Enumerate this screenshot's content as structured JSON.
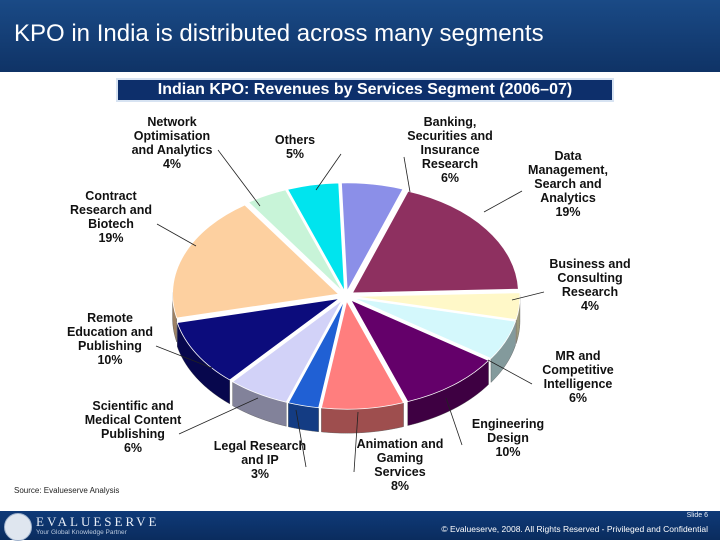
{
  "slide": {
    "title": "KPO in India is distributed across many segments",
    "source": "Source: Evalueserve Analysis",
    "slide_number": "Slide 6",
    "copyright": "© Evalueserve, 2008. All Rights Reserved - Privileged and Confidential",
    "brand": "EVALUESERVE",
    "tagline": "Your Global Knowledge Partner"
  },
  "chart_data": {
    "type": "pie",
    "title": "Indian KPO: Revenues by Services Segment (2006–07)",
    "slices": [
      {
        "label": "Banking, Securities and Insurance Research",
        "lines": [
          "Banking,",
          "Securities and",
          "Insurance",
          "Research"
        ],
        "value": 6,
        "text": "6%",
        "color": "#8b8fe8"
      },
      {
        "label": "Data Management, Search and Analytics",
        "lines": [
          "Data",
          "Management,",
          "Search and",
          "Analytics"
        ],
        "value": 19,
        "text": "19%",
        "color": "#8e3060"
      },
      {
        "label": "Business and Consulting Research",
        "lines": [
          "Business and",
          "Consulting",
          "Research"
        ],
        "value": 4,
        "text": "4%",
        "color": "#fff8c8"
      },
      {
        "label": "MR and Competitive Intelligence",
        "lines": [
          "MR and",
          "Competitive",
          "Intelligence"
        ],
        "value": 6,
        "text": "6%",
        "color": "#d4f8fc"
      },
      {
        "label": "Engineering Design",
        "lines": [
          "Engineering",
          "Design"
        ],
        "value": 10,
        "text": "10%",
        "color": "#64006a"
      },
      {
        "label": "Animation and Gaming Services",
        "lines": [
          "Animation and",
          "Gaming",
          "Services"
        ],
        "value": 8,
        "text": "8%",
        "color": "#ff7e7e"
      },
      {
        "label": "Legal Research and IP",
        "lines": [
          "Legal Research",
          "and IP"
        ],
        "value": 3,
        "text": "3%",
        "color": "#2060d4"
      },
      {
        "label": "Scientific and Medical Content Publishing",
        "lines": [
          "Scientific and",
          "Medical Content",
          "Publishing"
        ],
        "value": 6,
        "text": "6%",
        "color": "#d2d2f8"
      },
      {
        "label": "Remote Education and Publishing",
        "lines": [
          "Remote",
          "Education and",
          "Publishing"
        ],
        "value": 10,
        "text": "10%",
        "color": "#0c0c7c"
      },
      {
        "label": "Contract Research and Biotech",
        "lines": [
          "Contract",
          "Research and",
          "Biotech"
        ],
        "value": 19,
        "text": "19%",
        "color": "#fdd0a0"
      },
      {
        "label": "Network Optimisation and Analytics",
        "lines": [
          "Network",
          "Optimisation",
          "and Analytics"
        ],
        "value": 4,
        "text": "4%",
        "color": "#c8f4d8"
      },
      {
        "label": "Others",
        "lines": [
          "Others"
        ],
        "value": 5,
        "text": "5%",
        "color": "#00e4ee"
      }
    ],
    "start_angle_deg": -92,
    "exploded": true,
    "three_d": true
  }
}
